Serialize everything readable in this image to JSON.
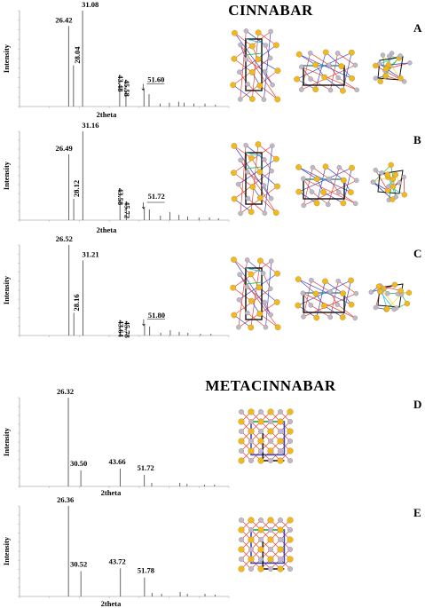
{
  "sections": [
    {
      "title": "CINNABAR"
    },
    {
      "title": "METACINNABAR"
    }
  ],
  "chart_data": [
    {
      "type": "line",
      "panel": "A",
      "section": 0,
      "xlabel": "2theta",
      "ylabel": "Intensity",
      "xlim": [
        10,
        80
      ],
      "ylim": [
        0,
        100
      ],
      "peaks": [
        {
          "x": 26.42,
          "y": 84,
          "label": "26.42"
        },
        {
          "x": 28.04,
          "y": 43,
          "label": "28.04"
        },
        {
          "x": 31.08,
          "y": 100,
          "label": "31.08"
        },
        {
          "x": 43.48,
          "y": 33,
          "label": "43.48"
        },
        {
          "x": 45.58,
          "y": 28,
          "label": "45.58"
        },
        {
          "x": 51.6,
          "y": 18,
          "label": "51.60"
        },
        {
          "x": 53.3,
          "y": 13,
          "label": ""
        },
        {
          "x": 57.0,
          "y": 3,
          "label": ""
        },
        {
          "x": 60.1,
          "y": 4,
          "label": ""
        },
        {
          "x": 63.2,
          "y": 5,
          "label": ""
        },
        {
          "x": 65.0,
          "y": 4,
          "label": ""
        },
        {
          "x": 68.3,
          "y": 3,
          "label": ""
        },
        {
          "x": 72.0,
          "y": 3,
          "label": ""
        },
        {
          "x": 75.5,
          "y": 2,
          "label": ""
        }
      ]
    },
    {
      "type": "line",
      "panel": "B",
      "section": 0,
      "xlabel": "2theta",
      "ylabel": "Intensity",
      "xlim": [
        10,
        80
      ],
      "ylim": [
        0,
        100
      ],
      "peaks": [
        {
          "x": 26.49,
          "y": 74,
          "label": "26.49"
        },
        {
          "x": 28.12,
          "y": 24,
          "label": "28.12"
        },
        {
          "x": 31.16,
          "y": 100,
          "label": "31.16"
        },
        {
          "x": 43.58,
          "y": 36,
          "label": "43.58"
        },
        {
          "x": 45.72,
          "y": 21,
          "label": "45.72"
        },
        {
          "x": 51.72,
          "y": 14,
          "label": "51.72"
        },
        {
          "x": 53.4,
          "y": 12,
          "label": ""
        },
        {
          "x": 57.1,
          "y": 5,
          "label": ""
        },
        {
          "x": 60.3,
          "y": 9,
          "label": ""
        },
        {
          "x": 63.3,
          "y": 6,
          "label": ""
        },
        {
          "x": 66.2,
          "y": 4,
          "label": ""
        },
        {
          "x": 70.0,
          "y": 3,
          "label": ""
        },
        {
          "x": 73.5,
          "y": 3,
          "label": ""
        },
        {
          "x": 76.5,
          "y": 2,
          "label": ""
        }
      ]
    },
    {
      "type": "line",
      "panel": "C",
      "section": 0,
      "xlabel": "",
      "ylabel": "Intensity",
      "xlim": [
        10,
        80
      ],
      "ylim": [
        0,
        100
      ],
      "peaks": [
        {
          "x": 26.52,
          "y": 100,
          "label": "26.52"
        },
        {
          "x": 28.16,
          "y": 25,
          "label": "28.16"
        },
        {
          "x": 31.21,
          "y": 83,
          "label": "31.21"
        },
        {
          "x": 43.64,
          "y": 17,
          "label": "43.64"
        },
        {
          "x": 45.78,
          "y": 16,
          "label": "45.78"
        },
        {
          "x": 51.8,
          "y": 12,
          "label": "51.80"
        },
        {
          "x": 53.5,
          "y": 10,
          "label": ""
        },
        {
          "x": 57.2,
          "y": 3,
          "label": ""
        },
        {
          "x": 60.4,
          "y": 6,
          "label": ""
        },
        {
          "x": 63.4,
          "y": 4,
          "label": ""
        },
        {
          "x": 66.3,
          "y": 3,
          "label": ""
        },
        {
          "x": 70.5,
          "y": 2,
          "label": ""
        },
        {
          "x": 74.0,
          "y": 2,
          "label": ""
        }
      ]
    },
    {
      "type": "line",
      "panel": "D",
      "section": 1,
      "xlabel": "2theta",
      "ylabel": "Intensity",
      "xlim": [
        10,
        80
      ],
      "ylim": [
        0,
        100
      ],
      "peaks": [
        {
          "x": 26.32,
          "y": 100,
          "label": "26.32"
        },
        {
          "x": 30.5,
          "y": 18,
          "label": "30.50"
        },
        {
          "x": 43.66,
          "y": 20,
          "label": "43.66"
        },
        {
          "x": 51.72,
          "y": 13,
          "label": "51.72"
        },
        {
          "x": 54.2,
          "y": 4,
          "label": ""
        },
        {
          "x": 63.6,
          "y": 4,
          "label": ""
        },
        {
          "x": 66.0,
          "y": 3,
          "label": ""
        },
        {
          "x": 71.8,
          "y": 2,
          "label": ""
        },
        {
          "x": 75.2,
          "y": 2,
          "label": ""
        }
      ]
    },
    {
      "type": "line",
      "panel": "E",
      "section": 1,
      "xlabel": "2theta",
      "ylabel": "Intensity",
      "xlim": [
        10,
        80
      ],
      "ylim": [
        0,
        100
      ],
      "peaks": [
        {
          "x": 26.36,
          "y": 100,
          "label": "26.36"
        },
        {
          "x": 30.52,
          "y": 28,
          "label": "30.52"
        },
        {
          "x": 43.72,
          "y": 31,
          "label": "43.72"
        },
        {
          "x": 51.78,
          "y": 21,
          "label": "51.78"
        },
        {
          "x": 54.3,
          "y": 4,
          "label": ""
        },
        {
          "x": 57.5,
          "y": 3,
          "label": ""
        },
        {
          "x": 63.7,
          "y": 5,
          "label": ""
        },
        {
          "x": 66.1,
          "y": 3,
          "label": ""
        },
        {
          "x": 72.0,
          "y": 3,
          "label": ""
        },
        {
          "x": 75.4,
          "y": 2,
          "label": ""
        }
      ]
    }
  ],
  "colors": {
    "sulfur": "#f2b81e",
    "mercury": "#bdb6d4",
    "bond_red": "#e0463c",
    "bond_green": "#3cc05a",
    "bond_blue": "#3a48c8",
    "bond_cyan": "#36c0d8",
    "cell_edge": "#111111"
  }
}
